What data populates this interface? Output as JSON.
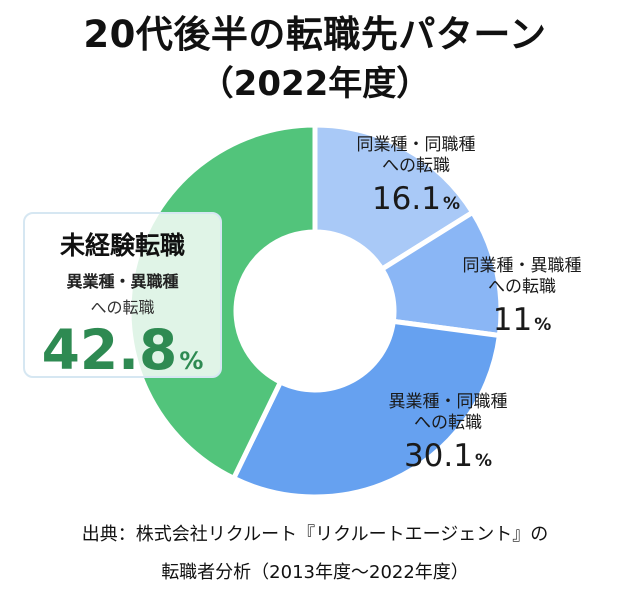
{
  "title": {
    "line1": "20代後半の転職先パターン",
    "line2": "（2022年度）"
  },
  "chart_data": {
    "type": "pie",
    "donut": true,
    "unit": "%",
    "series": [
      {
        "label_line1": "同業種・同職種",
        "label_line2": "への転職",
        "value": 16.1,
        "display": "16.1",
        "color": "#a9c9f7"
      },
      {
        "label_line1": "同業種・異職種",
        "label_line2": "への転職",
        "value": 11.0,
        "display": "11",
        "color": "#8ab6f5"
      },
      {
        "label_line1": "異業種・同職種",
        "label_line2": "への転職",
        "value": 30.1,
        "display": "30.1",
        "color": "#66a1f0"
      },
      {
        "label_name": "未経験転職",
        "label_line1": "異業種・異職種",
        "label_line2": "への転職",
        "value": 42.8,
        "display": "42.8",
        "color": "#52c47b",
        "highlight_color": "#2e8a52"
      }
    ]
  },
  "source": {
    "line1": "出典：株式会社リクルート『リクルートエージェント』の",
    "line2": "転職者分析（2013年度〜2022年度）"
  }
}
